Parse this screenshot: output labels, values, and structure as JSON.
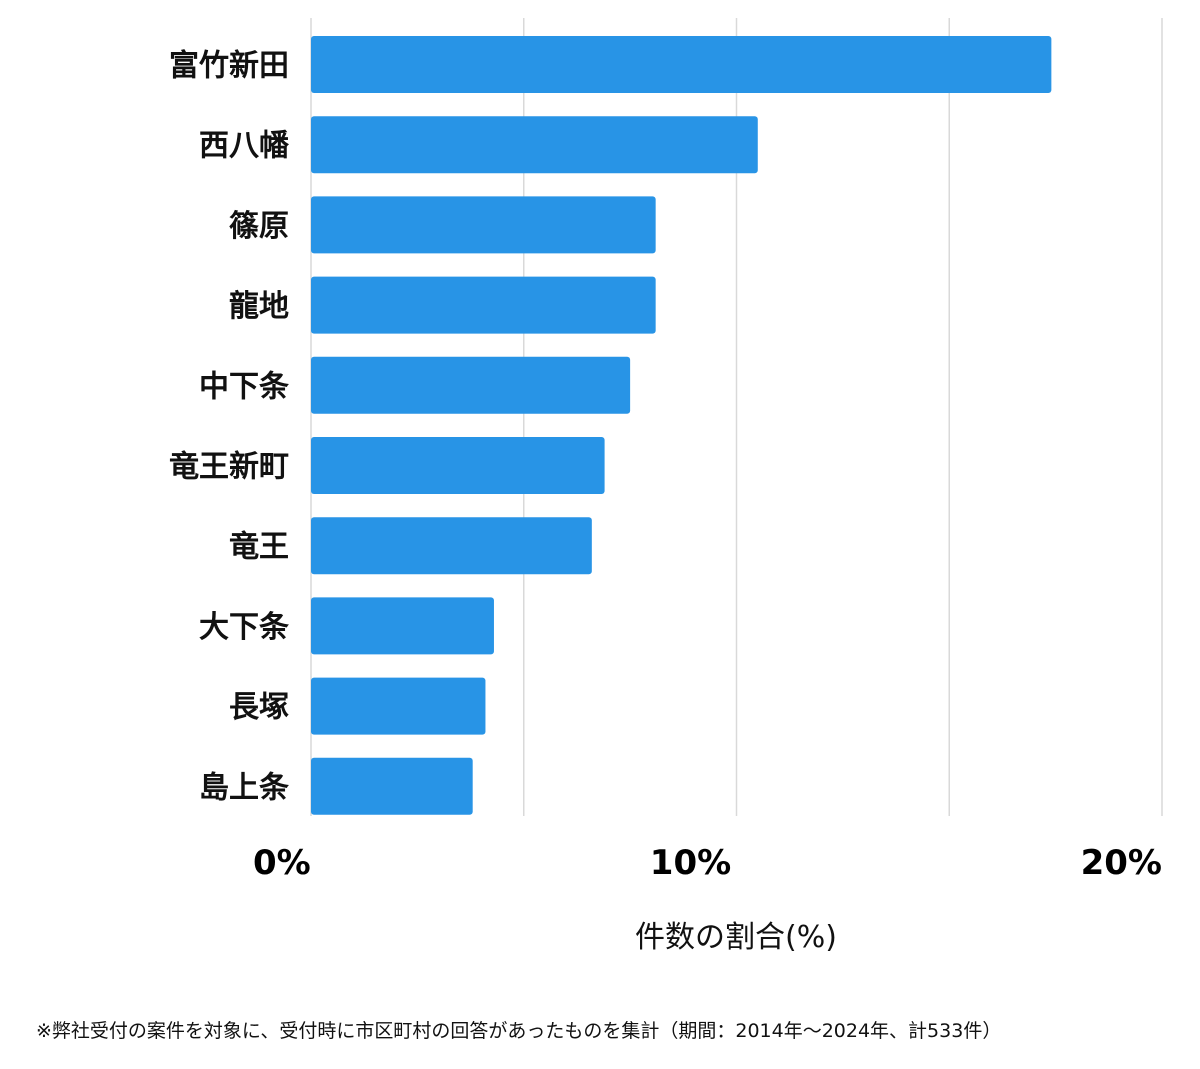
{
  "chart_data": {
    "type": "bar",
    "orientation": "horizontal",
    "categories": [
      "富竹新田",
      "西八幡",
      "篠原",
      "龍地",
      "中下条",
      "竜王新町",
      "竜王",
      "大下条",
      "長塚",
      "島上条"
    ],
    "values": [
      17.4,
      10.5,
      8.1,
      8.1,
      7.5,
      6.9,
      6.6,
      4.3,
      4.1,
      3.8
    ],
    "xlim": [
      0,
      20
    ],
    "xticks": [
      0,
      10,
      20
    ],
    "xtick_labels": [
      "0%",
      "10%",
      "20%"
    ],
    "xlabel": "件数の割合(%)",
    "grid": true,
    "bar_color": "#2894e6",
    "grid_color": "#d9d9d9"
  },
  "footnote": "※弊社受付の案件を対象に、受付時に市区町村の回答があったものを集計（期間：2014年〜2024年、計533件）"
}
